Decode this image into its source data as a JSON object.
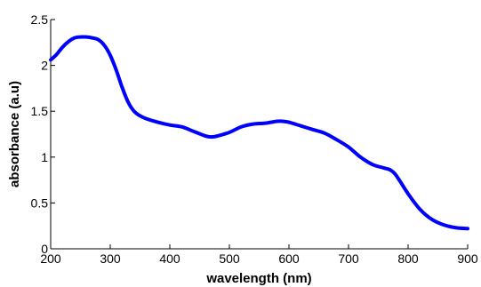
{
  "chart_data": {
    "type": "line",
    "title": "",
    "xlabel": "wavelength (nm)",
    "ylabel": "absorbance (a.u)",
    "xlim": [
      200,
      900
    ],
    "ylim": [
      0,
      2.5
    ],
    "xticks": [
      200,
      300,
      400,
      500,
      600,
      700,
      800,
      900
    ],
    "yticks": [
      0,
      0.5,
      1,
      1.5,
      2,
      2.5
    ],
    "ytick_labels": [
      "0",
      "0.5",
      "1",
      "1.5",
      "2",
      "2.5"
    ],
    "grid": false,
    "legend": "none",
    "series": [
      {
        "color": "#0000ff",
        "x": [
          200,
          210,
          220,
          230,
          240,
          250,
          260,
          270,
          280,
          290,
          300,
          310,
          320,
          330,
          340,
          350,
          360,
          380,
          400,
          420,
          440,
          460,
          470,
          480,
          500,
          520,
          540,
          560,
          580,
          590,
          600,
          620,
          640,
          660,
          680,
          700,
          720,
          740,
          760,
          770,
          780,
          800,
          820,
          840,
          860,
          880,
          900
        ],
        "y": [
          2.06,
          2.12,
          2.2,
          2.26,
          2.3,
          2.31,
          2.31,
          2.3,
          2.28,
          2.22,
          2.11,
          1.95,
          1.76,
          1.6,
          1.5,
          1.45,
          1.42,
          1.38,
          1.35,
          1.33,
          1.28,
          1.23,
          1.22,
          1.23,
          1.27,
          1.33,
          1.36,
          1.37,
          1.39,
          1.39,
          1.38,
          1.34,
          1.3,
          1.26,
          1.19,
          1.11,
          1.0,
          0.92,
          0.88,
          0.86,
          0.8,
          0.6,
          0.43,
          0.32,
          0.26,
          0.23,
          0.22
        ]
      }
    ]
  }
}
